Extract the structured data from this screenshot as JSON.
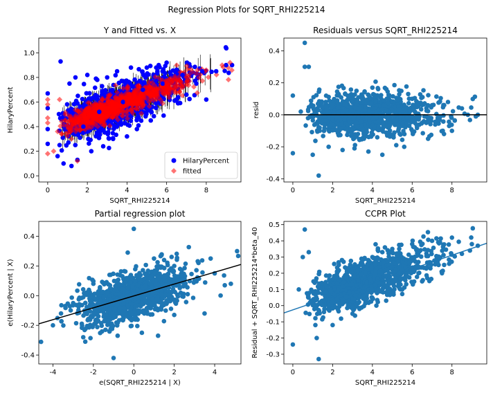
{
  "figure": {
    "suptitle": "Regression Plots for SQRT_RHI225214"
  },
  "colors": {
    "blue": "#0000ff",
    "red": "#ff0000",
    "tab_blue": "#1f77b4",
    "black": "#000000"
  },
  "chart_data": [
    {
      "id": "yfit",
      "type": "scatter",
      "title": "Y and Fitted vs. X",
      "xlabel": "SQRT_RHI225214",
      "ylabel": "HilaryPercent",
      "xlim": [
        -0.45,
        9.75
      ],
      "ylim": [
        -0.05,
        1.12
      ],
      "xticks": [
        0,
        2,
        4,
        6,
        8
      ],
      "yticks": [
        0.0,
        0.2,
        0.4,
        0.6,
        0.8,
        1.0
      ],
      "ytick_labels": [
        "0.0",
        "0.2",
        "0.4",
        "0.6",
        "0.8",
        "1.0"
      ],
      "legend": {
        "position": "lower-right",
        "entries": [
          "HilaryPercent",
          "fitted"
        ]
      },
      "series": [
        {
          "name": "HilaryPercent",
          "marker": "circle",
          "color": "#0000ff",
          "points": [
            [
              0.0,
              0.67
            ],
            [
              0.0,
              0.55
            ],
            [
              0.0,
              0.38
            ],
            [
              0.0,
              0.26
            ],
            [
              0.65,
              0.93
            ],
            [
              0.5,
              0.16
            ],
            [
              0.6,
              0.25
            ],
            [
              0.8,
              0.1
            ],
            [
              1.2,
              0.08
            ],
            [
              1.5,
              0.13
            ],
            [
              1.1,
              0.75
            ],
            [
              1.4,
              0.8
            ],
            [
              2.0,
              0.82
            ],
            [
              2.5,
              0.78
            ],
            [
              3.0,
              0.8
            ],
            [
              3.5,
              0.85
            ],
            [
              2.2,
              0.2
            ],
            [
              2.8,
              0.24
            ],
            [
              3.3,
              0.3
            ],
            [
              4.0,
              0.32
            ],
            [
              4.5,
              0.38
            ],
            [
              5.2,
              0.45
            ],
            [
              4.2,
              0.88
            ],
            [
              5.0,
              0.88
            ],
            [
              5.6,
              0.9
            ],
            [
              6.0,
              0.92
            ],
            [
              6.5,
              0.62
            ],
            [
              7.0,
              0.66
            ],
            [
              7.5,
              0.75
            ],
            [
              8.0,
              0.62
            ],
            [
              8.5,
              0.85
            ],
            [
              9.0,
              0.9
            ],
            [
              9.3,
              0.9
            ],
            [
              1.8,
              0.4
            ],
            [
              2.6,
              0.52
            ],
            [
              3.8,
              0.6
            ],
            [
              4.8,
              0.7
            ],
            [
              5.8,
              0.75
            ],
            [
              6.8,
              0.82
            ],
            [
              7.8,
              0.85
            ]
          ]
        },
        {
          "name": "fitted",
          "marker": "diamond",
          "color": "#ff0000",
          "points": [
            [
              0.0,
              0.18
            ],
            [
              0.0,
              0.62
            ],
            [
              0.0,
              0.58
            ],
            [
              0.0,
              0.47
            ],
            [
              0.0,
              0.43
            ],
            [
              0.3,
              0.2
            ],
            [
              0.6,
              0.62
            ],
            [
              1.5,
              0.12
            ],
            [
              1.2,
              0.3
            ],
            [
              2.0,
              0.44
            ],
            [
              3.0,
              0.52
            ],
            [
              4.0,
              0.6
            ],
            [
              5.0,
              0.68
            ],
            [
              6.0,
              0.75
            ],
            [
              7.0,
              0.8
            ],
            [
              8.0,
              0.86
            ],
            [
              8.8,
              0.9
            ],
            [
              9.2,
              0.92
            ],
            [
              2.5,
              0.48
            ],
            [
              3.5,
              0.56
            ],
            [
              4.5,
              0.64
            ],
            [
              5.5,
              0.71
            ],
            [
              6.5,
              0.78
            ],
            [
              7.5,
              0.83
            ],
            [
              1.0,
              0.4
            ],
            [
              0.5,
              0.36
            ]
          ]
        }
      ],
      "fitted_trend": {
        "x": [
          0,
          9.3
        ],
        "y": [
          0.36,
          0.92
        ]
      }
    },
    {
      "id": "resid",
      "type": "scatter",
      "title": "Residuals versus SQRT_RHI225214",
      "xlabel": "SQRT_RHI225214",
      "ylabel": "resid",
      "xlim": [
        -0.45,
        9.75
      ],
      "ylim": [
        -0.42,
        0.48
      ],
      "xticks": [
        0,
        2,
        4,
        6,
        8
      ],
      "yticks": [
        -0.4,
        -0.2,
        0.0,
        0.2,
        0.4
      ],
      "ytick_labels": [
        "-0.4",
        "-0.2",
        "0.0",
        "0.2",
        "0.4"
      ],
      "hline": 0,
      "series": [
        {
          "name": "",
          "color": "#1f77b4",
          "points": [
            [
              0.6,
              0.45
            ],
            [
              0.8,
              0.3
            ],
            [
              0.6,
              0.3
            ],
            [
              1.3,
              -0.38
            ],
            [
              0.0,
              -0.24
            ],
            [
              1.0,
              -0.25
            ],
            [
              0.0,
              0.12
            ],
            [
              2.3,
              0.13
            ],
            [
              3.2,
              0.15
            ],
            [
              4.0,
              0.17
            ],
            [
              4.7,
              0.16
            ],
            [
              5.8,
              0.13
            ],
            [
              6.0,
              0.1
            ],
            [
              1.8,
              -0.2
            ],
            [
              2.5,
              -0.22
            ],
            [
              3.1,
              -0.21
            ],
            [
              3.8,
              -0.23
            ],
            [
              4.5,
              -0.25
            ],
            [
              5.2,
              -0.19
            ],
            [
              5.6,
              -0.2
            ],
            [
              6.8,
              -0.15
            ],
            [
              7.6,
              -0.12
            ],
            [
              8.0,
              -0.1
            ],
            [
              8.8,
              0.0
            ],
            [
              9.2,
              -0.01
            ],
            [
              9.3,
              0.0
            ],
            [
              7.0,
              0.06
            ],
            [
              7.8,
              0.08
            ],
            [
              8.5,
              0.04
            ],
            [
              0.4,
              0.02
            ],
            [
              1.5,
              0.05
            ],
            [
              2.0,
              -0.03
            ],
            [
              3.5,
              0.0
            ],
            [
              5.0,
              0.03
            ],
            [
              6.5,
              -0.05
            ]
          ]
        }
      ]
    },
    {
      "id": "partreg",
      "type": "scatter",
      "title": "Partial regression plot",
      "xlabel": "e(SQRT_RHI225214 | X)",
      "ylabel": "e(HilaryPercent | X)",
      "xlim": [
        -4.7,
        5.3
      ],
      "ylim": [
        -0.46,
        0.5
      ],
      "xticks": [
        -4,
        -2,
        0,
        2,
        4
      ],
      "yticks": [
        -0.4,
        -0.2,
        0.0,
        0.2,
        0.4
      ],
      "ytick_labels": [
        "-0.4",
        "-0.2",
        "0.0",
        "0.2",
        "0.4"
      ],
      "fit_line": {
        "x": [
          -4.7,
          5.3
        ],
        "y": [
          -0.19,
          0.21
        ]
      },
      "series": [
        {
          "name": "",
          "color": "#1f77b4",
          "points": [
            [
              0.0,
              0.45
            ],
            [
              -1.0,
              -0.42
            ],
            [
              -4.0,
              -0.2
            ],
            [
              -3.6,
              -0.12
            ],
            [
              -2.5,
              -0.28
            ],
            [
              -2.4,
              -0.31
            ],
            [
              -1.4,
              -0.23
            ],
            [
              -0.8,
              -0.27
            ],
            [
              0.4,
              -0.25
            ],
            [
              1.2,
              -0.27
            ],
            [
              2.0,
              -0.13
            ],
            [
              3.5,
              -0.12
            ],
            [
              4.5,
              0.07
            ],
            [
              4.8,
              0.08
            ],
            [
              3.8,
              0.25
            ],
            [
              3.2,
              0.22
            ],
            [
              2.0,
              0.2
            ],
            [
              1.0,
              0.25
            ],
            [
              -0.3,
              0.29
            ],
            [
              -1.2,
              0.14
            ],
            [
              -2.0,
              0.08
            ],
            [
              -3.0,
              -0.05
            ],
            [
              -1.5,
              -0.1
            ],
            [
              0.5,
              0.02
            ],
            [
              1.5,
              0.05
            ],
            [
              2.5,
              0.1
            ],
            [
              -0.5,
              -0.05
            ],
            [
              3.0,
              0.1
            ],
            [
              4.0,
              0.15
            ]
          ]
        }
      ]
    },
    {
      "id": "ccpr",
      "type": "scatter",
      "title": "CCPR Plot",
      "xlabel": "SQRT_RHI225214",
      "ylabel": "Residual + SQRT_RHI225214*beta_40",
      "xlim": [
        -0.45,
        9.75
      ],
      "ylim": [
        -0.36,
        0.52
      ],
      "xticks": [
        0,
        2,
        4,
        6,
        8
      ],
      "yticks": [
        -0.3,
        -0.2,
        -0.1,
        0.0,
        0.1,
        0.2,
        0.3,
        0.4,
        0.5
      ],
      "ytick_labels": [
        "-0.3",
        "-0.2",
        "-0.1",
        "0.0",
        "0.1",
        "0.2",
        "0.3",
        "0.4",
        "0.5"
      ],
      "fit_line": {
        "x": [
          -0.45,
          9.75
        ],
        "y": [
          -0.045,
          0.385
        ]
      },
      "series": [
        {
          "name": "",
          "color": "#1f77b4",
          "points": [
            [
              0.6,
              0.47
            ],
            [
              1.3,
              -0.33
            ],
            [
              0.0,
              -0.24
            ],
            [
              0.8,
              0.33
            ],
            [
              0.5,
              0.3
            ],
            [
              1.2,
              -0.2
            ],
            [
              2.0,
              -0.12
            ],
            [
              3.0,
              -0.05
            ],
            [
              3.5,
              0.28
            ],
            [
              4.0,
              0.3
            ],
            [
              4.5,
              0.33
            ],
            [
              5.0,
              0.35
            ],
            [
              6.0,
              0.38
            ],
            [
              7.0,
              0.4
            ],
            [
              8.0,
              0.42
            ],
            [
              9.0,
              0.38
            ],
            [
              9.3,
              0.37
            ],
            [
              8.5,
              0.32
            ],
            [
              7.5,
              0.2
            ],
            [
              6.5,
              0.15
            ],
            [
              5.5,
              0.1
            ],
            [
              4.2,
              0.0
            ],
            [
              2.5,
              0.02
            ],
            [
              1.8,
              0.05
            ],
            [
              0.3,
              0.1
            ]
          ]
        }
      ]
    }
  ]
}
